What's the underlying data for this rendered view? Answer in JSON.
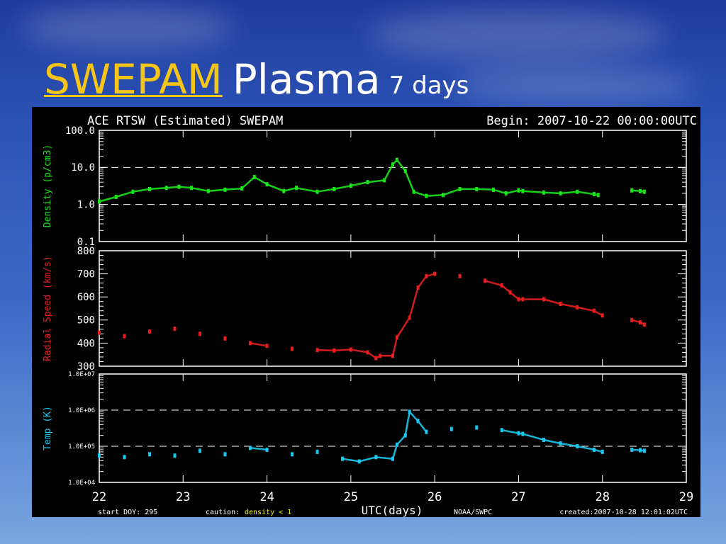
{
  "slide": {
    "title_link": "SWEPAM",
    "title_main": "Plasma",
    "title_sub": "7 days"
  },
  "plot": {
    "header_left": "ACE RTSW (Estimated) SWEPAM",
    "header_right": "Begin: 2007-10-22 00:00:00UTC",
    "footer_start": "start DOY: 295",
    "footer_caution": "caution:",
    "footer_density": "density < 1",
    "footer_xlabel": "UTC(days)",
    "footer_source": "NOAA/SWPC",
    "footer_created": "created:2007-10-28 12:01:02UTC",
    "colors": {
      "density": "#19e619",
      "speed": "#e61e1e",
      "temp": "#19c8f0",
      "axes": "#ffffff",
      "background": "#000000"
    }
  },
  "chart_data": [
    {
      "type": "scatter",
      "ylabel": "Density (p/cm3)",
      "yscale": "log",
      "ylim": [
        0.1,
        100
      ],
      "yticks": [
        "100.0",
        "10.0",
        "1.0",
        "0.1"
      ],
      "dashed_reference_lines": [
        10,
        1
      ],
      "xlim": [
        22,
        29
      ],
      "series": [
        {
          "values": [
            [
              22.0,
              1.2
            ],
            [
              22.2,
              1.6
            ],
            [
              22.4,
              2.2
            ],
            [
              22.6,
              2.6
            ],
            [
              22.8,
              2.8
            ],
            [
              22.95,
              3.0
            ],
            [
              23.1,
              2.8
            ],
            [
              23.3,
              2.3
            ],
            [
              23.5,
              2.5
            ],
            [
              23.7,
              2.7
            ],
            [
              23.85,
              5.5
            ],
            [
              24.0,
              3.5
            ],
            [
              24.2,
              2.3
            ],
            [
              24.35,
              2.8
            ],
            [
              24.6,
              2.2
            ],
            [
              24.8,
              2.6
            ],
            [
              25.0,
              3.2
            ],
            [
              25.2,
              4.0
            ],
            [
              25.4,
              4.5
            ],
            [
              25.5,
              12
            ],
            [
              25.55,
              16
            ],
            [
              25.65,
              8
            ],
            [
              25.75,
              2.2
            ],
            [
              25.9,
              1.7
            ],
            [
              26.1,
              1.8
            ],
            [
              26.3,
              2.6
            ],
            [
              26.5,
              2.6
            ],
            [
              26.7,
              2.5
            ],
            [
              26.85,
              2.0
            ],
            [
              27.0,
              2.4
            ],
            [
              27.05,
              2.3
            ],
            [
              27.3,
              2.1
            ],
            [
              27.5,
              2.0
            ],
            [
              27.7,
              2.2
            ],
            [
              27.9,
              1.9
            ],
            [
              27.95,
              1.8
            ],
            [
              28.35,
              2.4
            ],
            [
              28.45,
              2.3
            ],
            [
              28.5,
              2.2
            ]
          ]
        }
      ]
    },
    {
      "type": "scatter",
      "ylabel": "Radial Speed (km/s)",
      "ylim": [
        300,
        800
      ],
      "yticks": [
        "800",
        "700",
        "600",
        "500",
        "400",
        "300"
      ],
      "xlim": [
        22,
        29
      ],
      "series": [
        {
          "values": [
            [
              22.0,
              445
            ],
            [
              22.3,
              430
            ],
            [
              22.6,
              450
            ],
            [
              22.9,
              462
            ],
            [
              23.2,
              440
            ],
            [
              23.5,
              420
            ],
            [
              23.8,
              400
            ],
            [
              24.0,
              388
            ],
            [
              24.3,
              375
            ],
            [
              24.6,
              370
            ],
            [
              24.8,
              368
            ],
            [
              25.0,
              372
            ],
            [
              25.2,
              360
            ],
            [
              25.3,
              335
            ],
            [
              25.35,
              345
            ],
            [
              25.5,
              345
            ],
            [
              25.55,
              425
            ],
            [
              25.7,
              510
            ],
            [
              25.8,
              640
            ],
            [
              25.9,
              690
            ],
            [
              26.0,
              700
            ],
            [
              26.3,
              690
            ],
            [
              26.6,
              670
            ],
            [
              26.8,
              650
            ],
            [
              26.9,
              620
            ],
            [
              27.0,
              590
            ],
            [
              27.05,
              590
            ],
            [
              27.3,
              590
            ],
            [
              27.5,
              570
            ],
            [
              27.7,
              555
            ],
            [
              27.9,
              540
            ],
            [
              28.0,
              520
            ],
            [
              28.35,
              500
            ],
            [
              28.45,
              490
            ],
            [
              28.5,
              480
            ]
          ]
        }
      ]
    },
    {
      "type": "scatter",
      "ylabel": "Temp (K)",
      "yscale": "log",
      "ylim": [
        10000,
        10000000
      ],
      "yticks": [
        "1.0E+07",
        "1.0E+06",
        "1.0E+05",
        "1.0E+04"
      ],
      "dashed_reference_lines": [
        1000000,
        100000
      ],
      "xlim": [
        22,
        29
      ],
      "series": [
        {
          "values": [
            [
              22.0,
              55000
            ],
            [
              22.3,
              50000
            ],
            [
              22.6,
              60000
            ],
            [
              22.9,
              55000
            ],
            [
              23.2,
              75000
            ],
            [
              23.5,
              60000
            ],
            [
              23.8,
              90000
            ],
            [
              24.0,
              80000
            ],
            [
              24.3,
              60000
            ],
            [
              24.6,
              70000
            ],
            [
              24.9,
              45000
            ],
            [
              25.1,
              38000
            ],
            [
              25.3,
              50000
            ],
            [
              25.5,
              45000
            ],
            [
              25.55,
              110000
            ],
            [
              25.65,
              200000
            ],
            [
              25.7,
              900000
            ],
            [
              25.8,
              500000
            ],
            [
              25.9,
              250000
            ],
            [
              26.2,
              300000
            ],
            [
              26.5,
              330000
            ],
            [
              26.8,
              280000
            ],
            [
              27.0,
              230000
            ],
            [
              27.05,
              220000
            ],
            [
              27.3,
              150000
            ],
            [
              27.5,
              120000
            ],
            [
              27.7,
              100000
            ],
            [
              27.9,
              80000
            ],
            [
              28.0,
              70000
            ],
            [
              28.35,
              80000
            ],
            [
              28.45,
              78000
            ],
            [
              28.5,
              75000
            ]
          ]
        }
      ]
    },
    {
      "type": "scatter",
      "xlabel": "UTC(days)",
      "xticks": [
        "22",
        "23",
        "24",
        "25",
        "26",
        "27",
        "28",
        "29"
      ],
      "xlim": [
        22,
        29
      ]
    }
  ]
}
